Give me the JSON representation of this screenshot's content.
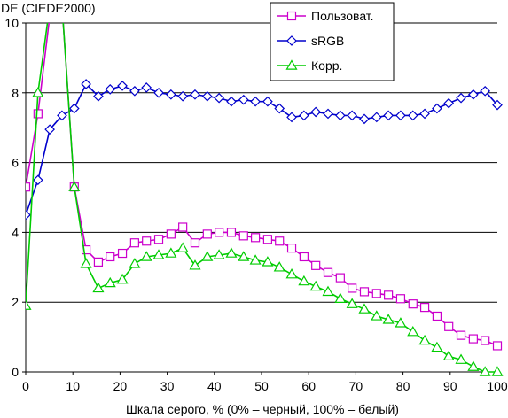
{
  "chart_data": {
    "type": "line",
    "title": "",
    "xlabel": "Шкала серого, % (0% – черный, 100% – белый)",
    "ylabel": "DE (CIEDE2000)",
    "xlim": [
      0,
      100
    ],
    "ylim": [
      0,
      10
    ],
    "x_ticks": [
      0,
      10,
      20,
      30,
      40,
      50,
      60,
      70,
      80,
      90,
      100
    ],
    "y_ticks": [
      0,
      2,
      4,
      6,
      8,
      10
    ],
    "grid": "horizontal",
    "legend_position": "top-right",
    "x": [
      0,
      2.6,
      5.1,
      7.7,
      10.3,
      12.8,
      15.4,
      17.9,
      20.5,
      23.1,
      25.6,
      28.2,
      30.8,
      33.3,
      35.9,
      38.5,
      41.0,
      43.6,
      46.2,
      48.7,
      51.3,
      53.8,
      56.4,
      59.0,
      61.5,
      64.1,
      66.7,
      69.2,
      71.8,
      74.4,
      76.9,
      79.5,
      82.1,
      84.6,
      87.2,
      89.7,
      92.3,
      94.9,
      97.4,
      100
    ],
    "series": [
      {
        "name": "Пользоват.",
        "color": "#cc00cc",
        "marker": "square",
        "values": [
          5.3,
          7.4,
          10.2,
          10.5,
          5.3,
          3.5,
          3.15,
          3.3,
          3.4,
          3.7,
          3.75,
          3.8,
          3.95,
          4.15,
          3.7,
          3.95,
          4.0,
          4.0,
          3.9,
          3.85,
          3.8,
          3.75,
          3.55,
          3.3,
          3.05,
          2.85,
          2.7,
          2.4,
          2.3,
          2.25,
          2.2,
          2.1,
          1.95,
          1.85,
          1.6,
          1.3,
          1.05,
          0.95,
          0.9,
          0.75
        ]
      },
      {
        "name": "sRGB",
        "color": "#0000cc",
        "marker": "diamond",
        "values": [
          4.5,
          5.5,
          6.95,
          7.35,
          7.55,
          8.25,
          7.9,
          8.1,
          8.2,
          8.05,
          8.15,
          8.0,
          7.95,
          7.9,
          7.95,
          7.9,
          7.85,
          7.75,
          7.8,
          7.75,
          7.75,
          7.55,
          7.3,
          7.35,
          7.45,
          7.4,
          7.35,
          7.35,
          7.25,
          7.3,
          7.35,
          7.35,
          7.35,
          7.4,
          7.55,
          7.7,
          7.85,
          7.95,
          8.05,
          7.65
        ]
      },
      {
        "name": "Корр.",
        "color": "#00cc00",
        "marker": "triangle",
        "values": [
          1.9,
          8.0,
          10.5,
          10.5,
          5.3,
          3.1,
          2.4,
          2.55,
          2.65,
          3.1,
          3.3,
          3.35,
          3.4,
          3.55,
          3.05,
          3.3,
          3.35,
          3.4,
          3.3,
          3.2,
          3.15,
          3.0,
          2.8,
          2.6,
          2.45,
          2.3,
          2.1,
          1.95,
          1.8,
          1.6,
          1.5,
          1.4,
          1.15,
          0.9,
          0.7,
          0.45,
          0.35,
          0.15,
          0.0,
          0.0
        ]
      }
    ]
  }
}
